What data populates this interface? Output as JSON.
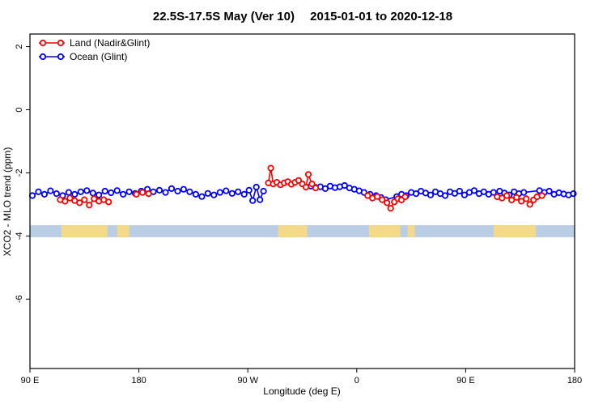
{
  "title": "22.5S-17.5S May (Ver 10)  2015-01-01 to 2020-12-18",
  "chart_data": {
    "type": "line",
    "title": "22.5S-17.5S May (Ver 10)   2015-01-01 to 2020-12-18",
    "xlabel": "Longitude (deg E)",
    "ylabel": "XCO2 - MLO trend (ppm)",
    "x_span": 450,
    "x_axis_note": "longitude axis wraps: 90E -> 180 -> 90W -> 0 -> 90E -> 180, positions are degrees east of the left edge (90E)",
    "x_ticks": [
      {
        "pos": 0,
        "label": "90 E"
      },
      {
        "pos": 90,
        "label": "180"
      },
      {
        "pos": 180,
        "label": "90 W"
      },
      {
        "pos": 270,
        "label": "0"
      },
      {
        "pos": 360,
        "label": "90 E"
      },
      {
        "pos": 450,
        "label": "180"
      }
    ],
    "y_ticks": [
      2,
      0,
      -2,
      -4,
      -6
    ],
    "ylim": [
      -8.2,
      2.4
    ],
    "grid": false,
    "legend_position": "top-left",
    "gap_threshold": 16,
    "legend": [
      {
        "label": "Land (Nadir&Glint)",
        "color": "#ff0000"
      },
      {
        "label": "Ocean (Glint)",
        "color": "#0000ff"
      }
    ],
    "series": [
      {
        "name": "Ocean (Glint)",
        "color": "#0000ff",
        "points": [
          [
            2,
            -2.72
          ],
          [
            7,
            -2.6
          ],
          [
            12,
            -2.68
          ],
          [
            17,
            -2.57
          ],
          [
            22,
            -2.66
          ],
          [
            27,
            -2.72
          ],
          [
            32,
            -2.62
          ],
          [
            37,
            -2.68
          ],
          [
            42,
            -2.6
          ],
          [
            47,
            -2.56
          ],
          [
            52,
            -2.64
          ],
          [
            57,
            -2.7
          ],
          [
            62,
            -2.58
          ],
          [
            67,
            -2.63
          ],
          [
            72,
            -2.56
          ],
          [
            77,
            -2.68
          ],
          [
            82,
            -2.6
          ],
          [
            87,
            -2.65
          ],
          [
            92,
            -2.58
          ],
          [
            97,
            -2.52
          ],
          [
            102,
            -2.6
          ],
          [
            107,
            -2.55
          ],
          [
            112,
            -2.62
          ],
          [
            117,
            -2.5
          ],
          [
            122,
            -2.58
          ],
          [
            127,
            -2.52
          ],
          [
            132,
            -2.6
          ],
          [
            137,
            -2.68
          ],
          [
            142,
            -2.75
          ],
          [
            147,
            -2.65
          ],
          [
            152,
            -2.7
          ],
          [
            157,
            -2.62
          ],
          [
            162,
            -2.57
          ],
          [
            167,
            -2.65
          ],
          [
            172,
            -2.6
          ],
          [
            177,
            -2.68
          ],
          [
            181,
            -2.55
          ],
          [
            184,
            -2.88
          ],
          [
            187,
            -2.45
          ],
          [
            190,
            -2.85
          ],
          [
            193,
            -2.58
          ],
          [
            232,
            -2.42
          ],
          [
            236,
            -2.46
          ],
          [
            240,
            -2.44
          ],
          [
            244,
            -2.5
          ],
          [
            248,
            -2.42
          ],
          [
            252,
            -2.47
          ],
          [
            256,
            -2.44
          ],
          [
            260,
            -2.4
          ],
          [
            264,
            -2.48
          ],
          [
            268,
            -2.52
          ],
          [
            272,
            -2.57
          ],
          [
            276,
            -2.62
          ],
          [
            281,
            -2.68
          ],
          [
            286,
            -2.72
          ],
          [
            290,
            -2.78
          ],
          [
            294,
            -2.85
          ],
          [
            303,
            -2.75
          ],
          [
            307,
            -2.68
          ],
          [
            311,
            -2.72
          ],
          [
            315,
            -2.62
          ],
          [
            319,
            -2.66
          ],
          [
            323,
            -2.58
          ],
          [
            327,
            -2.64
          ],
          [
            331,
            -2.7
          ],
          [
            335,
            -2.6
          ],
          [
            339,
            -2.66
          ],
          [
            343,
            -2.72
          ],
          [
            347,
            -2.6
          ],
          [
            351,
            -2.65
          ],
          [
            355,
            -2.58
          ],
          [
            359,
            -2.7
          ],
          [
            363,
            -2.62
          ],
          [
            367,
            -2.56
          ],
          [
            371,
            -2.66
          ],
          [
            375,
            -2.6
          ],
          [
            379,
            -2.68
          ],
          [
            383,
            -2.62
          ],
          [
            388,
            -2.58
          ],
          [
            392,
            -2.64
          ],
          [
            396,
            -2.7
          ],
          [
            400,
            -2.6
          ],
          [
            404,
            -2.66
          ],
          [
            408,
            -2.62
          ],
          [
            421,
            -2.56
          ],
          [
            425,
            -2.62
          ],
          [
            429,
            -2.58
          ],
          [
            433,
            -2.68
          ],
          [
            437,
            -2.63
          ],
          [
            441,
            -2.67
          ],
          [
            445,
            -2.7
          ],
          [
            449,
            -2.66
          ]
        ]
      },
      {
        "name": "Land (Nadir&Glint)",
        "color": "#ff0000",
        "points": [
          [
            25,
            -2.85
          ],
          [
            29,
            -2.9
          ],
          [
            33,
            -2.8
          ],
          [
            37,
            -2.88
          ],
          [
            41,
            -2.95
          ],
          [
            45,
            -2.85
          ],
          [
            49,
            -3.02
          ],
          [
            53,
            -2.82
          ],
          [
            57,
            -2.9
          ],
          [
            61,
            -2.85
          ],
          [
            65,
            -2.92
          ],
          [
            88,
            -2.68
          ],
          [
            93,
            -2.62
          ],
          [
            98,
            -2.66
          ],
          [
            197,
            -2.32
          ],
          [
            199,
            -1.85
          ],
          [
            201,
            -2.35
          ],
          [
            204,
            -2.3
          ],
          [
            207,
            -2.38
          ],
          [
            210,
            -2.32
          ],
          [
            213,
            -2.28
          ],
          [
            216,
            -2.36
          ],
          [
            219,
            -2.3
          ],
          [
            222,
            -2.24
          ],
          [
            225,
            -2.35
          ],
          [
            228,
            -2.45
          ],
          [
            230,
            -2.05
          ],
          [
            233,
            -2.35
          ],
          [
            236,
            -2.48
          ],
          [
            279,
            -2.72
          ],
          [
            283,
            -2.8
          ],
          [
            287,
            -2.75
          ],
          [
            291,
            -2.85
          ],
          [
            295,
            -2.95
          ],
          [
            298,
            -3.12
          ],
          [
            301,
            -2.92
          ],
          [
            304,
            -2.82
          ],
          [
            307,
            -2.86
          ],
          [
            310,
            -2.76
          ],
          [
            386,
            -2.76
          ],
          [
            390,
            -2.8
          ],
          [
            394,
            -2.72
          ],
          [
            398,
            -2.86
          ],
          [
            402,
            -2.78
          ],
          [
            406,
            -2.9
          ],
          [
            410,
            -2.82
          ],
          [
            413,
            -3.0
          ],
          [
            416,
            -2.86
          ],
          [
            419,
            -2.76
          ],
          [
            423,
            -2.72
          ]
        ]
      }
    ],
    "map_strip": {
      "y_center": -3.85,
      "height": 0.38,
      "ocean_color": "#b9cde5",
      "land_color": "#f5d98b",
      "land_segments": [
        [
          26,
          64
        ],
        [
          72,
          82
        ],
        [
          205,
          229
        ],
        [
          280,
          306
        ],
        [
          312,
          318
        ],
        [
          383,
          418
        ]
      ]
    }
  }
}
